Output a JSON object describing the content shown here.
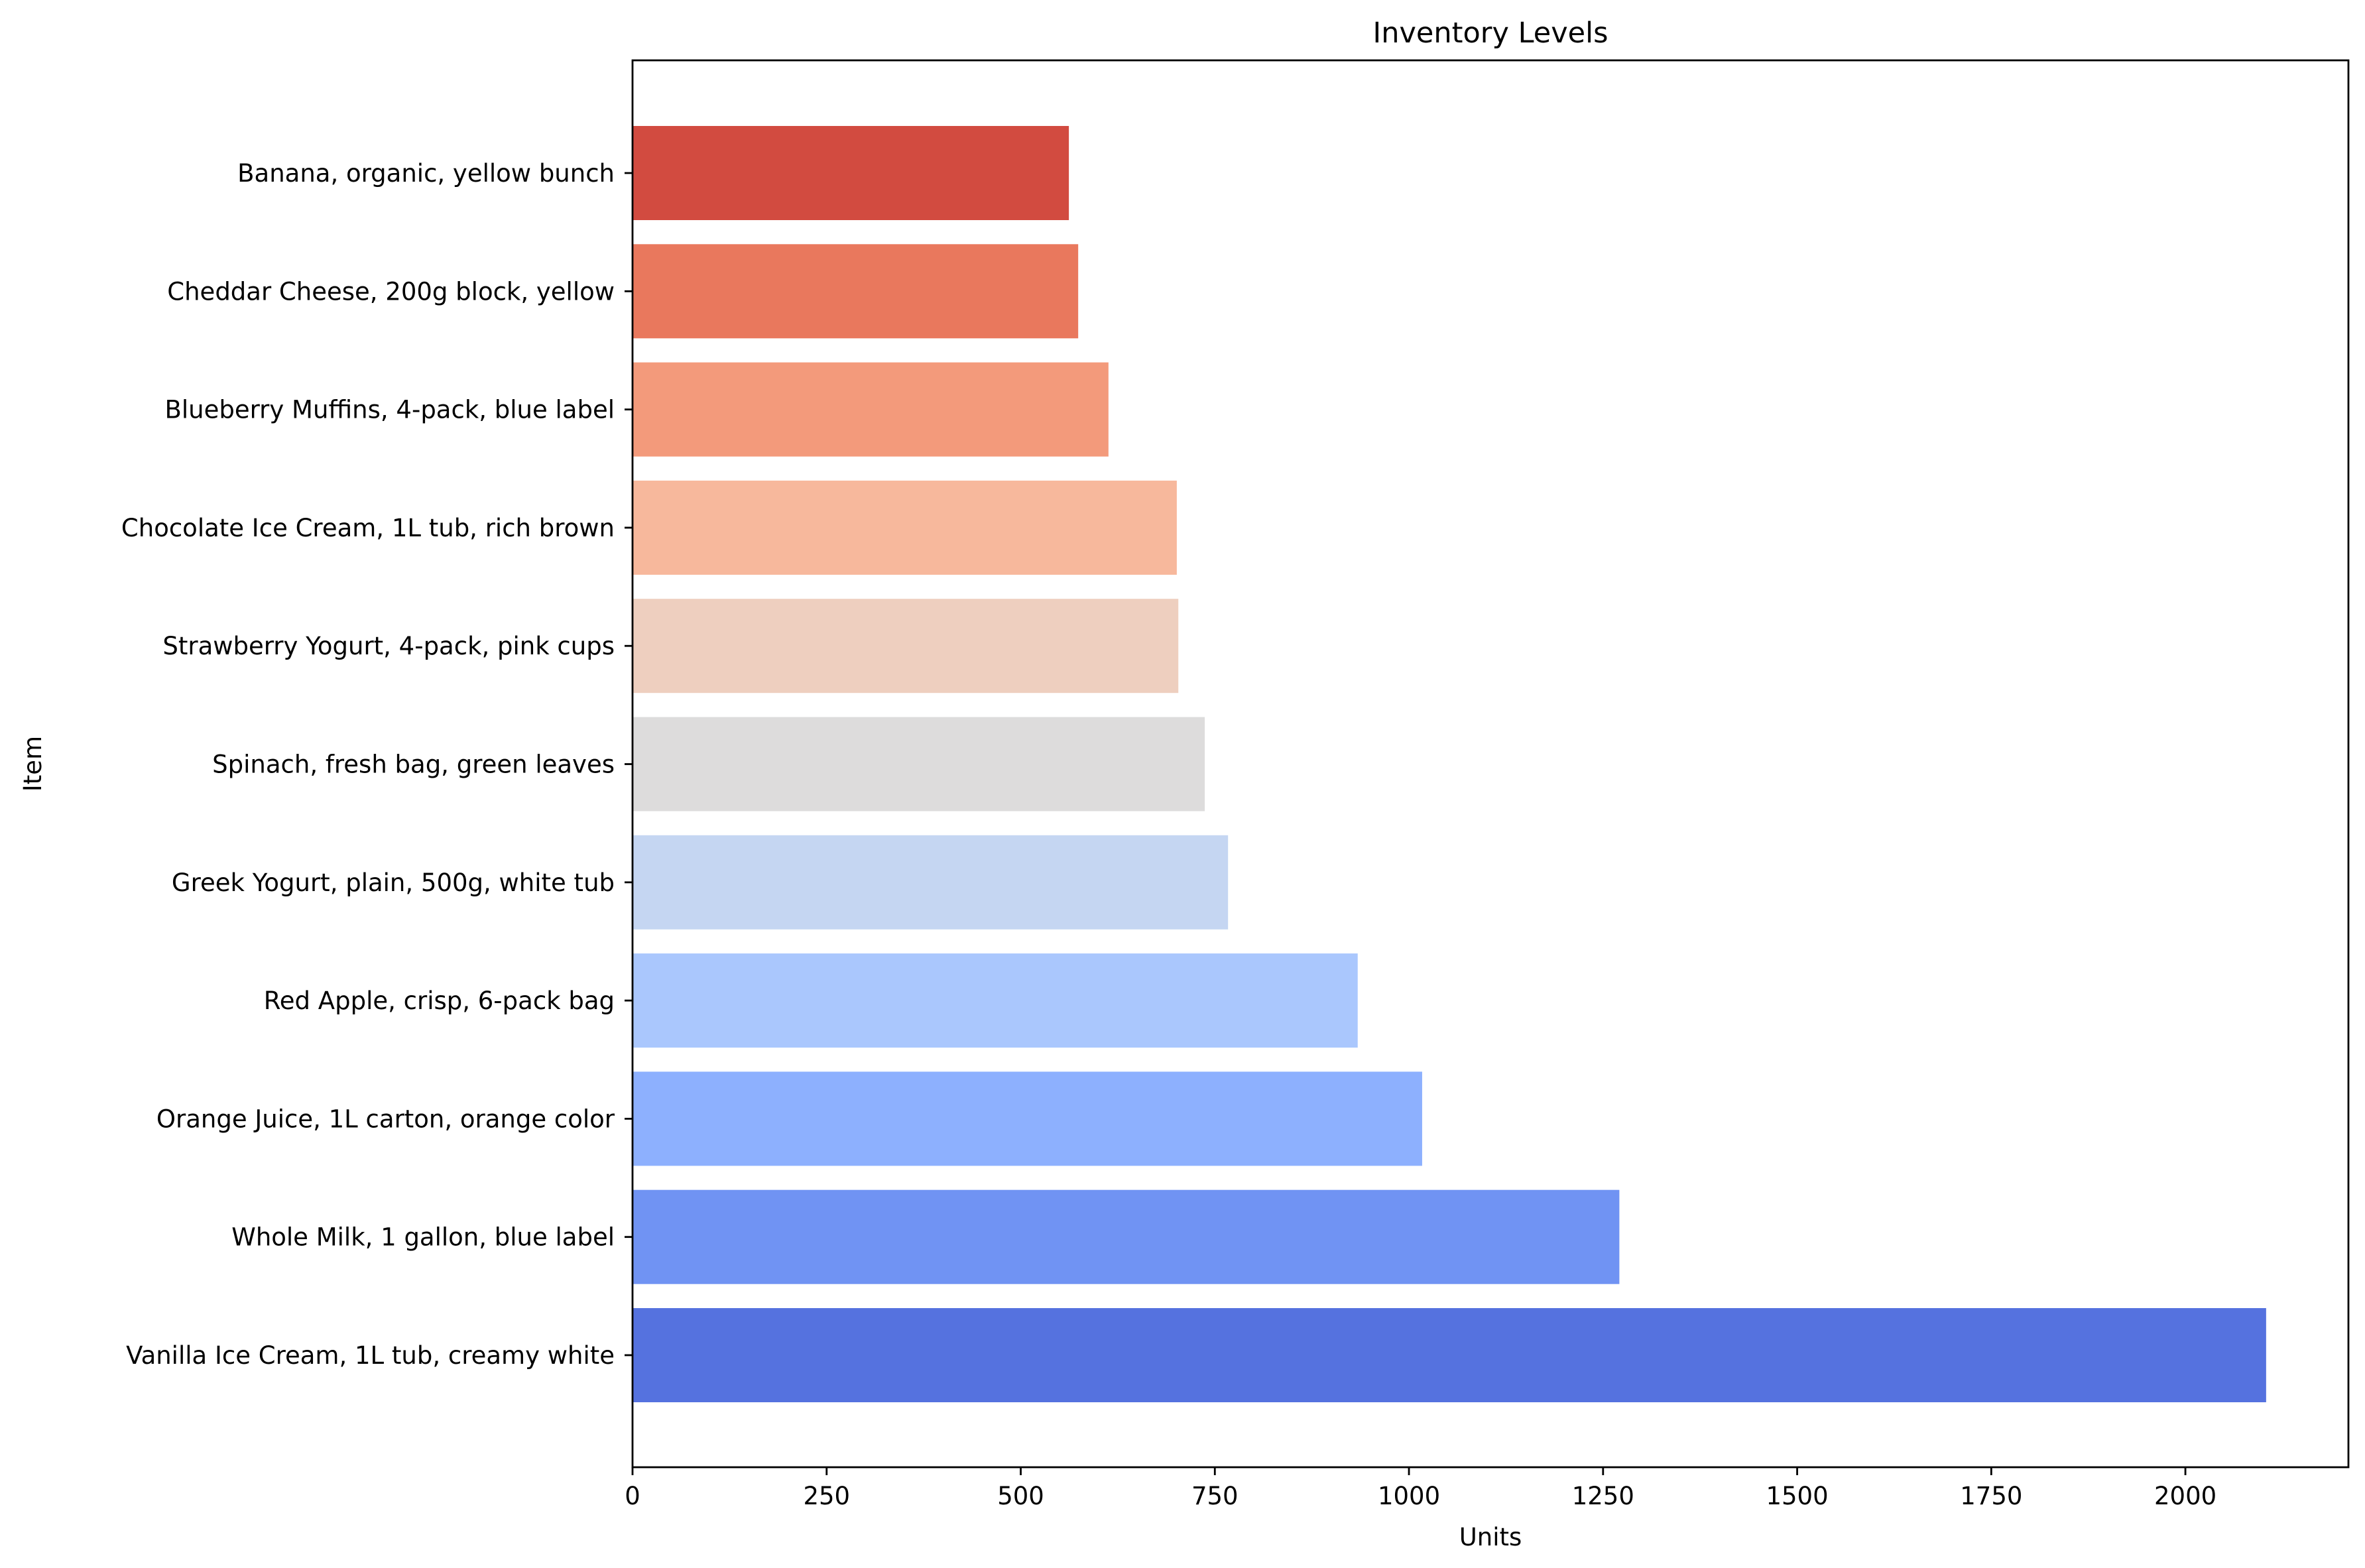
{
  "chart_data": {
    "type": "bar",
    "orientation": "horizontal",
    "title": "Inventory Levels",
    "xlabel": "Units",
    "ylabel": "Item",
    "xlim": [
      0,
      2210
    ],
    "xticks": [
      0,
      250,
      500,
      750,
      1000,
      1250,
      1500,
      1750,
      2000
    ],
    "xtick_labels": [
      "0",
      "250",
      "500",
      "750",
      "1000",
      "1250",
      "1500",
      "1750",
      "2000"
    ],
    "grid": false,
    "legend": "none",
    "categories": [
      "Banana, organic, yellow bunch",
      "Cheddar Cheese, 200g block, yellow",
      "Blueberry Muffins, 4-pack, blue label",
      "Chocolate Ice Cream, 1L tub, rich brown",
      "Strawberry Yogurt, 4-pack, pink cups",
      "Spinach, fresh bag, green leaves",
      "Greek Yogurt, plain, 500g, white tub",
      "Red Apple, crisp, 6-pack bag",
      "Orange Juice, 1L carton, orange color",
      "Whole Milk, 1 gallon, blue label",
      "Vanilla Ice Cream, 1L tub, creamy white"
    ],
    "values": [
      562,
      574,
      613,
      701,
      703,
      737,
      767,
      934,
      1017,
      1271,
      2104
    ],
    "colors": [
      "#d24b40",
      "#e9785d",
      "#f39a7b",
      "#f7b89c",
      "#eecfbf",
      "#dddcdc",
      "#c5d6f2",
      "#aac7fd",
      "#8db0fe",
      "#7093f3",
      "#5572df"
    ]
  }
}
